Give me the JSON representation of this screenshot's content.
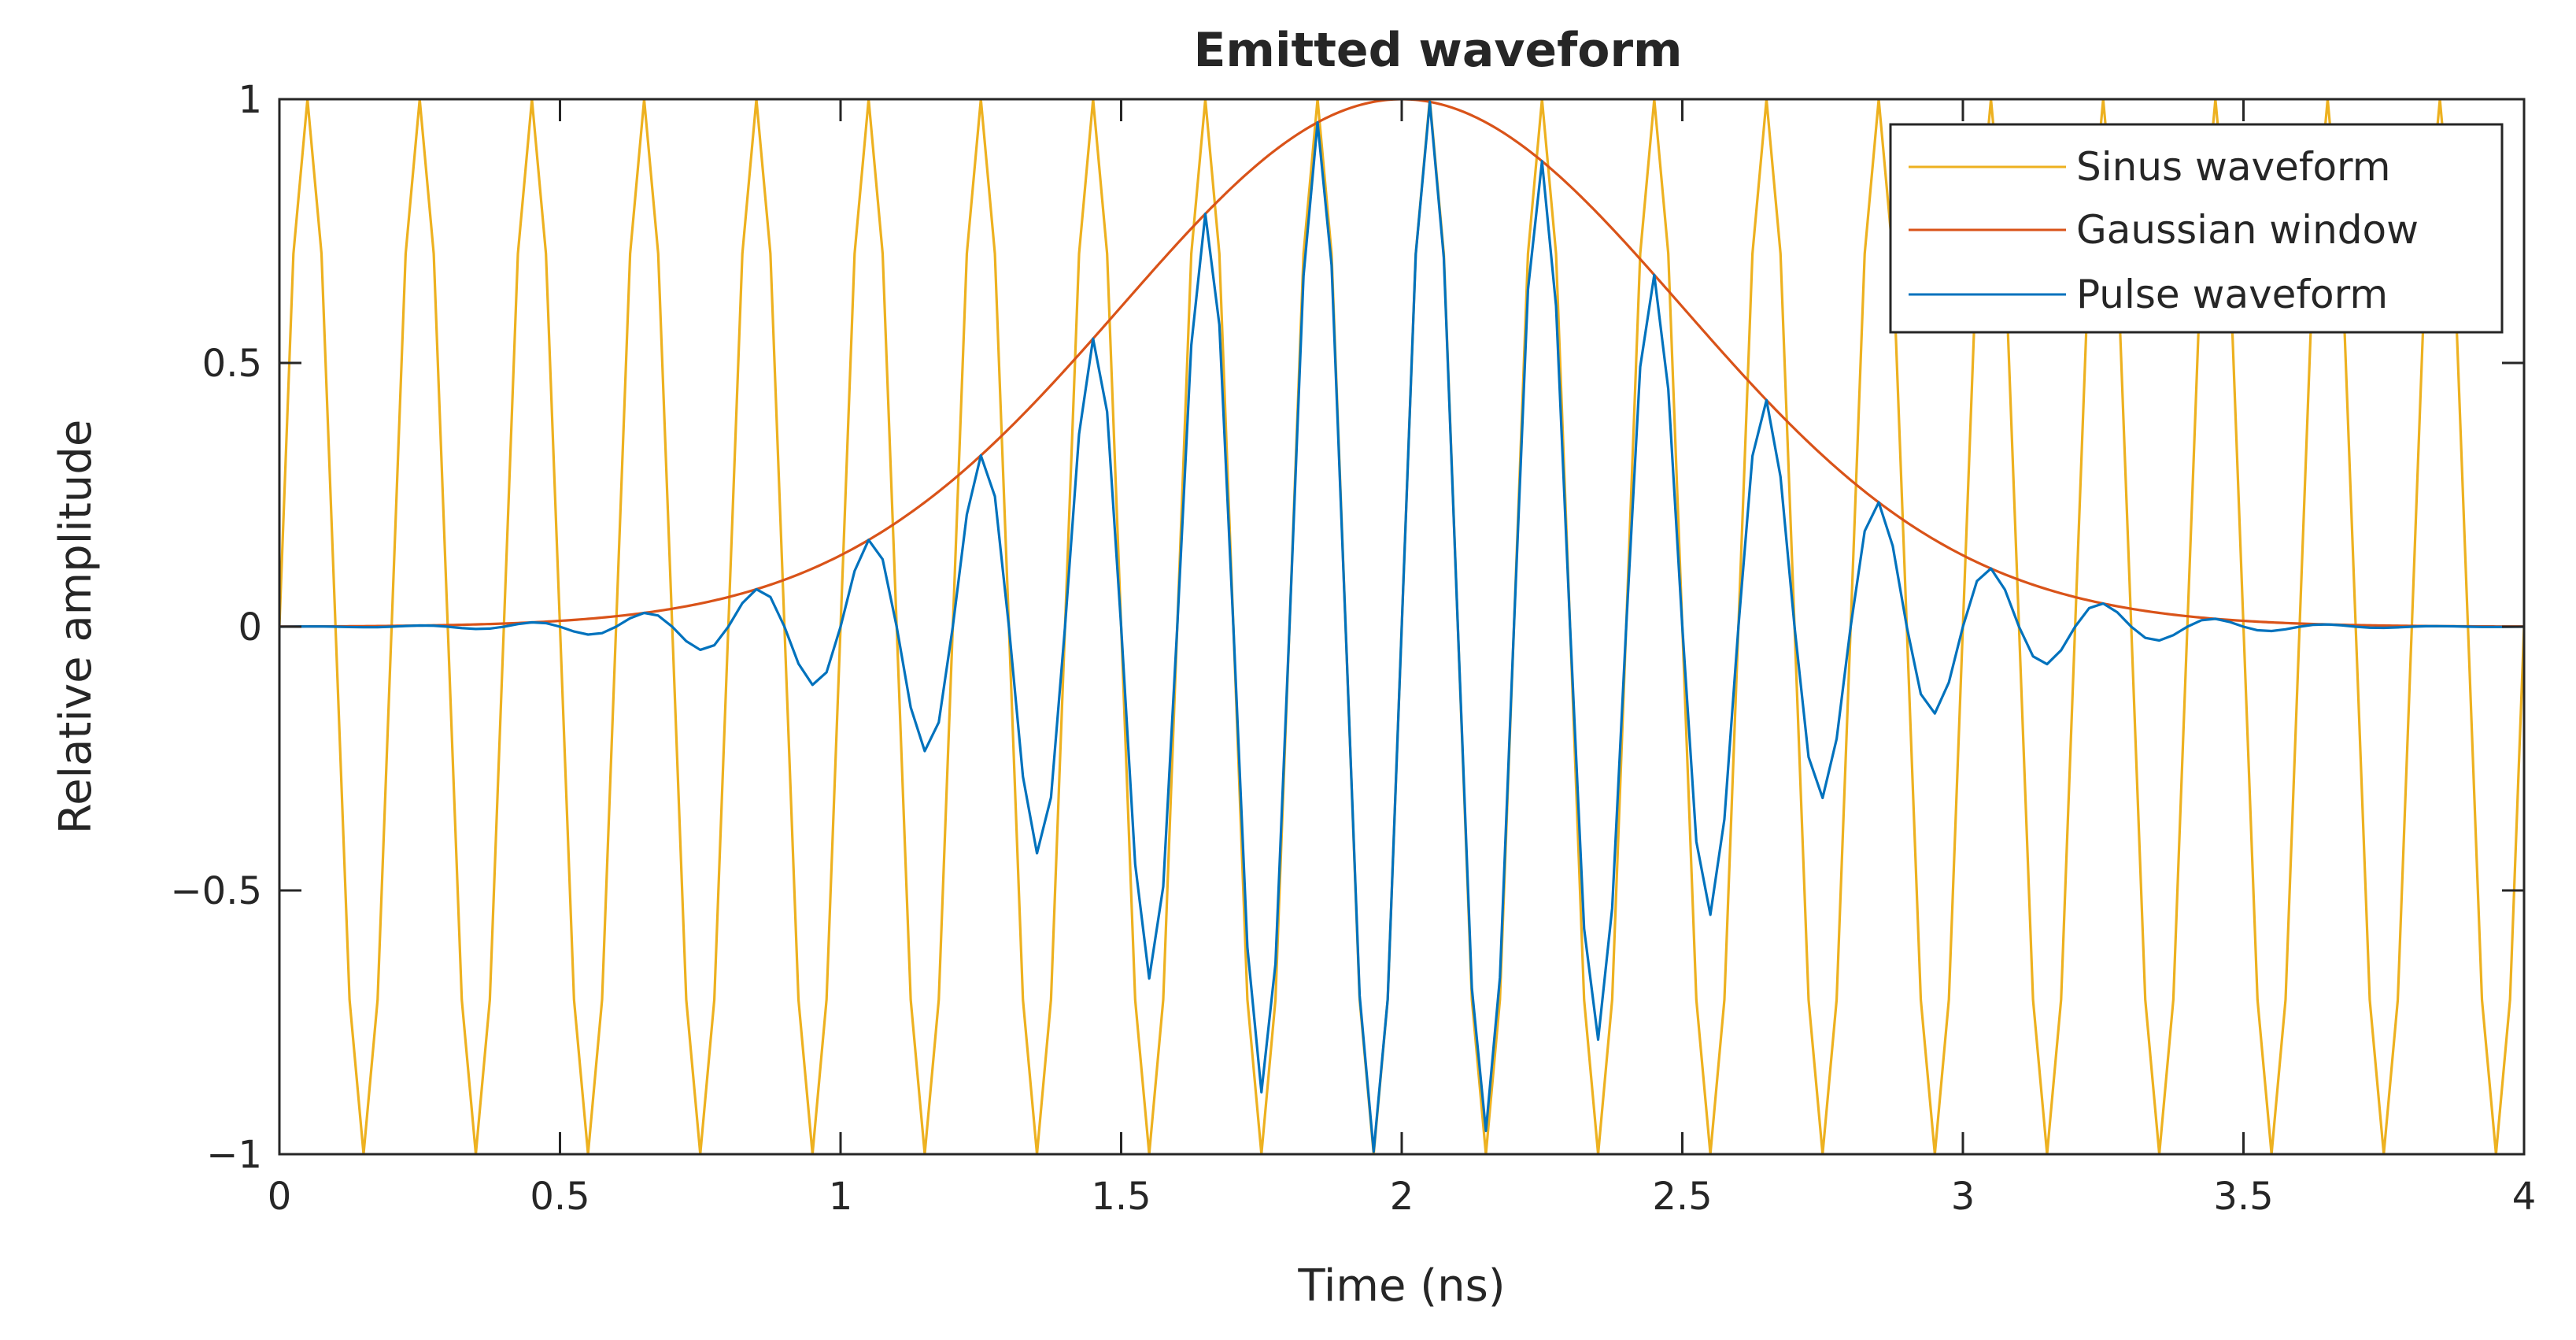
{
  "chart_data": {
    "type": "line",
    "title": "Emitted waveform",
    "xlabel": "Time (ns)",
    "ylabel": "Relative amplitude",
    "xlim": [
      0,
      4
    ],
    "ylim": [
      -1,
      1
    ],
    "xticks": [
      0,
      0.5,
      1,
      1.5,
      2,
      2.5,
      3,
      3.5,
      4
    ],
    "xtick_labels": [
      "0",
      "0.5",
      "1",
      "1.5",
      "2",
      "2.5",
      "3",
      "3.5",
      "4"
    ],
    "yticks": [
      -1,
      -0.5,
      0,
      0.5,
      1
    ],
    "ytick_labels": [
      "−1",
      "−0.5",
      "0",
      "0.5",
      "1"
    ],
    "grid": false,
    "legend_position": "top-right",
    "x_step_ns": 0.025,
    "series": [
      {
        "name": "Sinus waveform",
        "color": "#EDB120",
        "frequency_ghz": 5,
        "sample_step_ns": 0.025,
        "formula": "sin(2*pi*5*t)"
      },
      {
        "name": "Gaussian window",
        "color": "#D95319",
        "center_ns": 2,
        "sigma_ns": 0.5,
        "formula": "exp(-(t-2)^2/(2*0.5^2))"
      },
      {
        "name": "Pulse waveform",
        "color": "#0072BD",
        "formula": "sin(2*pi*5*t)*exp(-(t-2)^2/(2*0.5^2))"
      }
    ]
  }
}
